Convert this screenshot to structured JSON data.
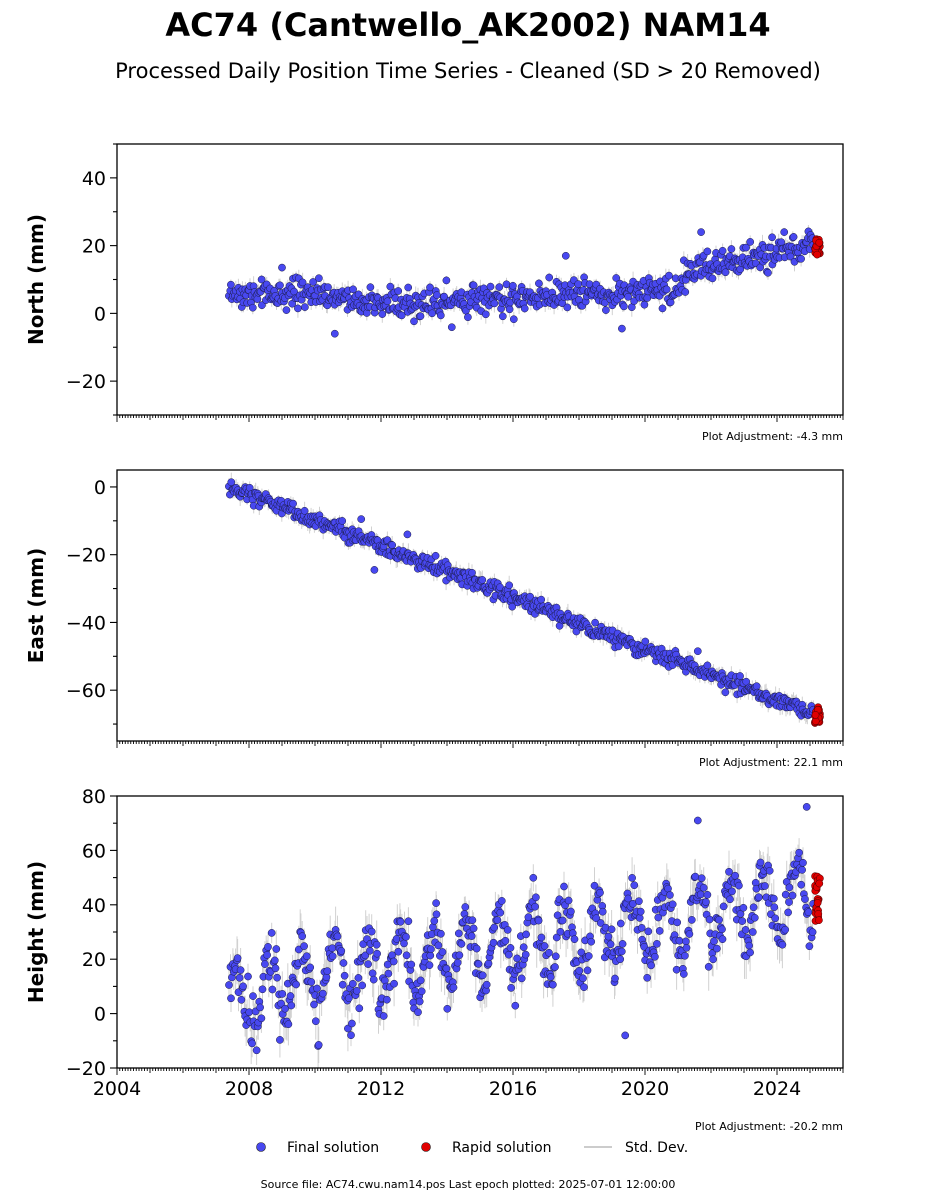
{
  "figure": {
    "title": "AC74 (Cantwello_AK2002) NAM14",
    "subtitle": "Processed Daily Position Time Series - Cleaned (SD > 20 Removed)",
    "footer": "Source file: AC74.cwu.nam14.pos  Last epoch plotted: 2025-07-01 12:00:00"
  },
  "legend": {
    "items": [
      {
        "label": "Final solution",
        "color": "#4848f0",
        "marker": "dot"
      },
      {
        "label": "Rapid solution",
        "color": "#e00000",
        "marker": "dot"
      },
      {
        "label": "Std. Dev.",
        "color": "#cccccc",
        "marker": "line"
      }
    ]
  },
  "chart_data": [
    {
      "type": "scatter",
      "ylabel": "North (mm)",
      "xlim": [
        2004,
        2026
      ],
      "ylim": [
        -30,
        50
      ],
      "yticks": [
        -20,
        0,
        20,
        40
      ],
      "xticks": [],
      "adjustment": "Plot Adjustment: -4.3 mm",
      "series": [
        {
          "name": "Final solution",
          "trend": {
            "x": [
              2007.4,
              2008.0,
              2010.0,
              2012.0,
              2014.0,
              2016.0,
              2018.0,
              2019.5,
              2021.0,
              2021.3,
              2022.0,
              2024.0,
              2025.1
            ],
            "y": [
              6,
              6,
              5,
              3,
              3.5,
              5,
              6,
              6,
              8,
              12,
              14,
              18,
              21
            ]
          },
          "scatter_sd": 2.2,
          "outliers": [
            {
              "x": 2019.3,
              "y": -4.5
            },
            {
              "x": 2010.6,
              "y": -6
            },
            {
              "x": 2021.7,
              "y": 24
            },
            {
              "x": 2017.6,
              "y": 17
            },
            {
              "x": 2009.0,
              "y": 13.5
            }
          ]
        },
        {
          "name": "Rapid solution",
          "x_range": [
            2025.15,
            2025.3
          ],
          "y_range": [
            17,
            22
          ]
        }
      ]
    },
    {
      "type": "scatter",
      "ylabel": "East (mm)",
      "xlim": [
        2004,
        2026
      ],
      "ylim": [
        -75,
        5
      ],
      "yticks": [
        -60,
        -40,
        -20,
        0
      ],
      "xticks": [],
      "adjustment": "Plot Adjustment: 22.1 mm",
      "series": [
        {
          "name": "Final solution",
          "trend": {
            "x": [
              2007.4,
              2025.1
            ],
            "y": [
              0,
              -67
            ]
          },
          "scatter_sd": 1.2,
          "outliers": [
            {
              "x": 2011.4,
              "y": -9.5
            },
            {
              "x": 2012.8,
              "y": -14
            },
            {
              "x": 2011.8,
              "y": -24.5
            },
            {
              "x": 2021.6,
              "y": -48.5
            }
          ]
        },
        {
          "name": "Rapid solution",
          "x_range": [
            2025.15,
            2025.3
          ],
          "y_range": [
            -70,
            -65
          ]
        }
      ]
    },
    {
      "type": "scatter",
      "ylabel": "Height (mm)",
      "xlim": [
        2004,
        2026
      ],
      "ylim": [
        -20,
        80
      ],
      "yticks": [
        -20,
        0,
        20,
        40,
        60,
        80
      ],
      "xticks": [
        2004,
        2008,
        2012,
        2016,
        2020,
        2024
      ],
      "adjustment": "Plot Adjustment: -20.2 mm",
      "series": [
        {
          "name": "Final solution",
          "trend": {
            "x": [
              2007.4,
              2009.0,
              2012.0,
              2016.0,
              2020.0,
              2025.1
            ],
            "y": [
              5,
              10,
              17,
              25,
              32,
              44
            ]
          },
          "seasonal_amplitude": 12,
          "scatter_sd": 5,
          "outliers": [
            {
              "x": 2019.4,
              "y": -8
            },
            {
              "x": 2021.6,
              "y": 71
            },
            {
              "x": 2024.9,
              "y": 76
            }
          ]
        },
        {
          "name": "Rapid solution",
          "x_range": [
            2025.15,
            2025.3
          ],
          "y_range": [
            34,
            51
          ]
        }
      ]
    }
  ]
}
